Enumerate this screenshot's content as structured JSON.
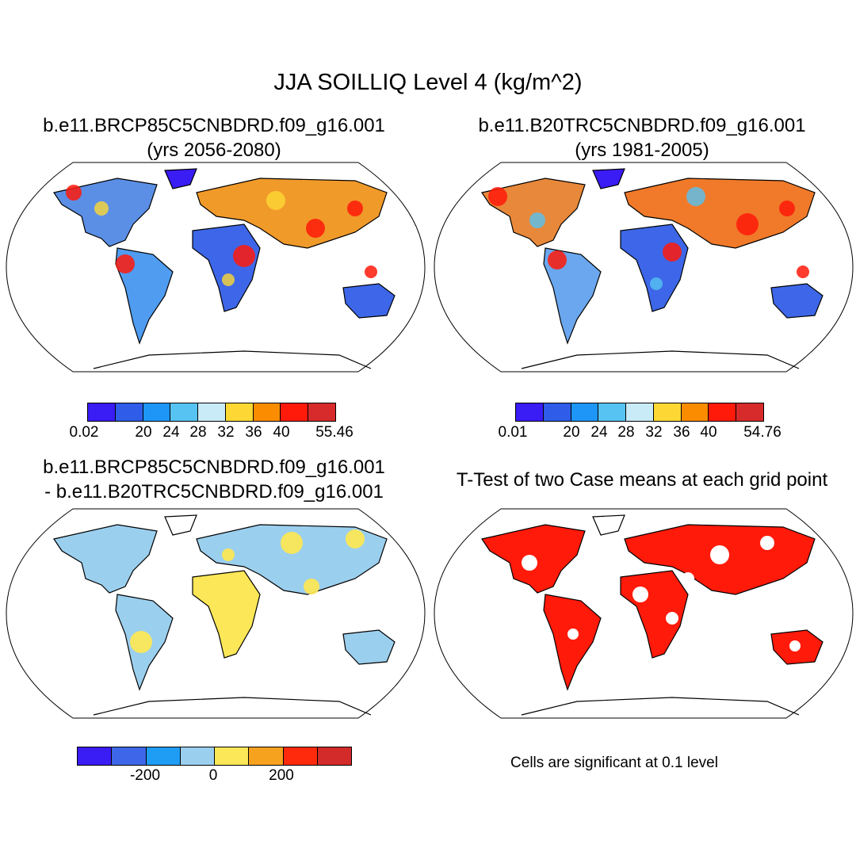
{
  "title": "JJA SOILLIQ Level 4 (kg/m^2)",
  "panels": [
    {
      "title_line1": "b.e11.BRCP85C5CNBDRD.f09_g16.001",
      "title_line2": "(yrs 2056-2080)"
    },
    {
      "title_line1": "b.e11.B20TRC5CNBDRD.f09_g16.001",
      "title_line2": "(yrs 1981-2005)"
    },
    {
      "title_line1": "b.e11.BRCP85C5CNBDRD.f09_g16.001",
      "title_line2": "- b.e11.B20TRC5CNBDRD.f09_g16.001"
    },
    {
      "title_line1": "T-Test of two Case means at each grid point"
    }
  ],
  "colorbars": {
    "case1": {
      "colors": [
        "#3a1cf5",
        "#2f5ce8",
        "#1e96f7",
        "#56c3f2",
        "#c9eaf7",
        "#fdd835",
        "#fb8c00",
        "#ff1a0a",
        "#d72b2b"
      ],
      "ticks": [
        "0.02",
        "20",
        "24",
        "28",
        "32",
        "36",
        "40",
        "55.46"
      ]
    },
    "case2": {
      "colors": [
        "#3a1cf5",
        "#2f5ce8",
        "#1e96f7",
        "#56c3f2",
        "#c9eaf7",
        "#fdd835",
        "#fb8c00",
        "#ff1a0a",
        "#d72b2b"
      ],
      "ticks": [
        "0.01",
        "20",
        "24",
        "28",
        "32",
        "36",
        "40",
        "54.76"
      ]
    },
    "diff": {
      "colors": [
        "#3a1cf5",
        "#3d67e8",
        "#1f9df5",
        "#9bcfee",
        "#fbe757",
        "#f7a21e",
        "#ff2a0c",
        "#d32a2a"
      ],
      "ticks": [
        "-200",
        "0",
        "200"
      ]
    }
  },
  "significance_note": "Cells are significant at 0.1 level"
}
